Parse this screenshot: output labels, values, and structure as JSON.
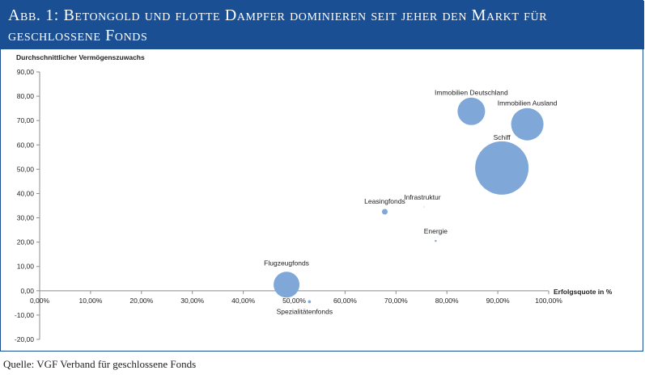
{
  "title": "Abb. 1: Betongold und flotte Dampfer dominieren seit jeher den Markt für geschlossene Fonds",
  "source": "Quelle: VGF Verband für geschlossene Fonds",
  "colors": {
    "header_bg": "#1b4f93",
    "bubble": "#7fa7d8",
    "axis": "#8c8c8c",
    "text": "#222222"
  },
  "chart_data": {
    "type": "scatter",
    "subtype": "bubble",
    "xlabel": "Erfolgsquote in %",
    "ylabel": "Durchschnittlicher Vermögenszuwachs",
    "xlim": [
      0,
      100
    ],
    "ylim": [
      -20,
      90
    ],
    "x_ticks": [
      "0,00%",
      "10,00%",
      "20,00%",
      "30,00%",
      "40,00%",
      "50,00%",
      "60,00%",
      "70,00%",
      "80,00%",
      "90,00%",
      "100,00%"
    ],
    "y_ticks": [
      "90,00",
      "80,00",
      "70,00",
      "60,00",
      "50,00",
      "40,00",
      "30,00",
      "20,00",
      "10,00",
      "0,00",
      "-10,00",
      "-20,00"
    ],
    "grid": false,
    "points": [
      {
        "label": "Immobilien Deutschland",
        "x": 84.8,
        "y": 73.8,
        "size": 17
      },
      {
        "label": "Immobilien Ausland",
        "x": 95.8,
        "y": 68.5,
        "size": 20
      },
      {
        "label": "Schiff",
        "x": 90.8,
        "y": 50.5,
        "size": 33
      },
      {
        "label": "Infrastruktur",
        "x": 75.5,
        "y": 34.5,
        "size": 0.5
      },
      {
        "label": "Leasingfonds",
        "x": 67.8,
        "y": 32.5,
        "size": 3.5
      },
      {
        "label": "Energie",
        "x": 77.8,
        "y": 20.5,
        "size": 1.2
      },
      {
        "label": "Flugzeugfonds",
        "x": 48.5,
        "y": 2.5,
        "size": 16
      },
      {
        "label": "Spezialitätenfonds",
        "x": 53.0,
        "y": -4.5,
        "size": 1.8
      }
    ]
  }
}
